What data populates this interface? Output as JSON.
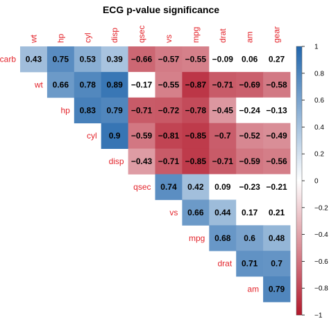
{
  "chart_data": {
    "type": "heatmap",
    "title": "ECG p-value significance",
    "variables": [
      "carb",
      "wt",
      "hp",
      "cyl",
      "disp",
      "qsec",
      "vs",
      "mpg",
      "drat",
      "am",
      "gear"
    ],
    "row_labels": [
      "carb",
      "wt",
      "hp",
      "cyl",
      "disp",
      "qsec",
      "vs",
      "mpg",
      "drat",
      "am"
    ],
    "col_labels": [
      "wt",
      "hp",
      "cyl",
      "disp",
      "qsec",
      "vs",
      "mpg",
      "drat",
      "am",
      "gear"
    ],
    "values": [
      [
        0.43,
        0.75,
        0.53,
        0.39,
        -0.66,
        -0.57,
        -0.55,
        -0.09,
        0.06,
        0.27
      ],
      [
        null,
        0.66,
        0.78,
        0.89,
        -0.17,
        -0.55,
        -0.87,
        -0.71,
        -0.69,
        -0.58
      ],
      [
        null,
        null,
        0.83,
        0.79,
        -0.71,
        -0.72,
        -0.78,
        -0.45,
        -0.24,
        -0.13
      ],
      [
        null,
        null,
        null,
        0.9,
        -0.59,
        -0.81,
        -0.85,
        -0.7,
        -0.52,
        -0.49
      ],
      [
        null,
        null,
        null,
        null,
        -0.43,
        -0.71,
        -0.85,
        -0.71,
        -0.59,
        -0.56
      ],
      [
        null,
        null,
        null,
        null,
        null,
        0.74,
        0.42,
        0.09,
        -0.23,
        -0.21
      ],
      [
        null,
        null,
        null,
        null,
        null,
        null,
        0.66,
        0.44,
        0.17,
        0.21
      ],
      [
        null,
        null,
        null,
        null,
        null,
        null,
        null,
        0.68,
        0.6,
        0.48
      ],
      [
        null,
        null,
        null,
        null,
        null,
        null,
        null,
        null,
        0.71,
        0.7
      ],
      [
        null,
        null,
        null,
        null,
        null,
        null,
        null,
        null,
        null,
        0.79
      ]
    ],
    "insignificant": [
      [
        0,
        7
      ],
      [
        0,
        8
      ],
      [
        0,
        9
      ],
      [
        1,
        4
      ],
      [
        2,
        8
      ],
      [
        2,
        9
      ],
      [
        5,
        7
      ],
      [
        5,
        8
      ],
      [
        5,
        9
      ],
      [
        6,
        8
      ],
      [
        6,
        9
      ]
    ],
    "color_scale": {
      "min": -1,
      "max": 1,
      "low": "#b2182b",
      "mid": "#ffffff",
      "high": "#2166ac"
    },
    "colorbar_ticks": [
      "1",
      "0.8",
      "0.6",
      "0.4",
      "0.2",
      "0",
      "−0.2",
      "−0.4",
      "−0.6",
      "−0.8",
      "−1"
    ],
    "colorbar_tick_values": [
      1,
      0.8,
      0.6,
      0.4,
      0.2,
      0,
      -0.2,
      -0.4,
      -0.6,
      -0.8,
      -1
    ],
    "label_color": "#e3242b"
  }
}
